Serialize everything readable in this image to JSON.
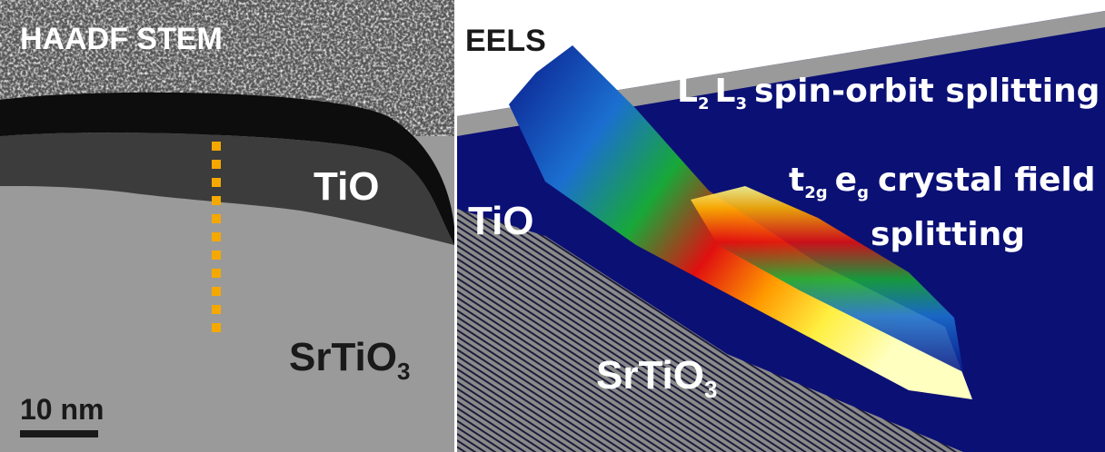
{
  "left_panel": {
    "title": "HAADF STEM",
    "labels": [
      {
        "text": "TiO"
      },
      {
        "text": "SrTiO",
        "sub": "3"
      }
    ],
    "scale_bar": "10 nm"
  },
  "right_panel": {
    "title": "EELS",
    "annotations": [
      [
        {
          "text": "L",
          "sub": "2"
        },
        {
          "text": "L",
          "sub": "3"
        },
        {
          "text": "spin-orbit splitting"
        }
      ],
      [
        {
          "text": "t",
          "sub": "2g"
        },
        {
          "text": "e",
          "sub": "g"
        },
        {
          "text": "crystal field"
        }
      ],
      [
        {
          "text": "splitting"
        }
      ]
    ],
    "labels": [
      {
        "text": "TiO"
      },
      {
        "text": "SrTiO",
        "sub": "3"
      }
    ]
  }
}
